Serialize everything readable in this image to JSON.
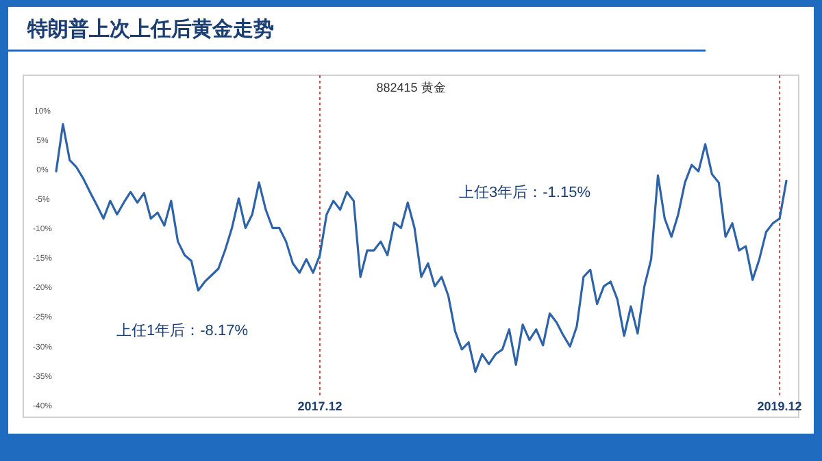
{
  "chart_data": {
    "type": "line",
    "title": "特朗普上次上任后黄金走势",
    "subtitle": "882415 黄金",
    "ylim": [
      -42,
      16
    ],
    "yticks": [
      {
        "value": 10,
        "label": "10%"
      },
      {
        "value": 5,
        "label": "5%"
      },
      {
        "value": 0,
        "label": "0%"
      },
      {
        "value": -5,
        "label": "-5%"
      },
      {
        "value": -10,
        "label": "-10%"
      },
      {
        "value": -15,
        "label": "-15%"
      },
      {
        "value": -20,
        "label": "-20%"
      },
      {
        "value": -25,
        "label": "-25%"
      },
      {
        "value": -30,
        "label": "-30%"
      },
      {
        "value": -35,
        "label": "-35%"
      },
      {
        "value": -40,
        "label": "-40%"
      }
    ],
    "grid": false,
    "categories": [
      null,
      null,
      null,
      null,
      null,
      null,
      null,
      null,
      null,
      null,
      null,
      null,
      null,
      null,
      null,
      null,
      null,
      null,
      null,
      null,
      null,
      null,
      null,
      null,
      null,
      null,
      null,
      null,
      null,
      null,
      null,
      null,
      null,
      null,
      null,
      null,
      null,
      null,
      null,
      "2017.12",
      null,
      null,
      null,
      null,
      null,
      null,
      null,
      null,
      null,
      null,
      null,
      null,
      null,
      null,
      null,
      null,
      null,
      null,
      null,
      null,
      null,
      null,
      null,
      null,
      null,
      null,
      null,
      null,
      null,
      null,
      null,
      null,
      null,
      null,
      null,
      null,
      null,
      null,
      null,
      null,
      null,
      null,
      null,
      null,
      null,
      null,
      null,
      null,
      null,
      null,
      null,
      null,
      null,
      null,
      null,
      null,
      null,
      null,
      null,
      null,
      null,
      null,
      null,
      null,
      null,
      null,
      null,
      "2019.12",
      null
    ],
    "ref_lines": [
      {
        "axis": "x",
        "value": "2017.12",
        "color": "#c0504d",
        "line_style": "dotted"
      },
      {
        "axis": "x",
        "value": "2019.12",
        "color": "#c0504d",
        "line_style": "dotted"
      }
    ],
    "annotations": [
      "上任1年后：-8.17%",
      "上任3年后：-1.15%"
    ],
    "series": [
      {
        "color": "#2e63a8",
        "values": [
          -0.3,
          7.7,
          1.6,
          0.4,
          -1.5,
          -3.8,
          -6,
          -8.3,
          -5.3,
          -7.6,
          -5.6,
          -3.8,
          -5.6,
          -4,
          -8.3,
          -7.3,
          -9.5,
          -5.3,
          -12.2,
          -14.5,
          -15.5,
          -20.5,
          -19,
          -17.9,
          -16.8,
          -13.6,
          -9.9,
          -4.9,
          -9.9,
          -7.6,
          -2.2,
          -6.8,
          -9.9,
          -9.9,
          -12.2,
          -15.9,
          -17.5,
          -15.2,
          -17.5,
          -14.5,
          -7.6,
          -5.3,
          -6.8,
          -3.8,
          -5.3,
          -18.2,
          -13.7,
          -13.7,
          -12.2,
          -14.5,
          -9,
          -9.9,
          -5.6,
          -9.9,
          -18.2,
          -15.9,
          -19.8,
          -18.2,
          -21.4,
          -27.4,
          -30.5,
          -29.3,
          -34.3,
          -31.3,
          -33,
          -31.3,
          -30.5,
          -27.1,
          -33.1,
          -26.3,
          -28.9,
          -27.1,
          -29.8,
          -24.4,
          -25.9,
          -28.1,
          -30,
          -26.6,
          -18.2,
          -17,
          -22.8,
          -19.8,
          -19,
          -22,
          -28.2,
          -23.2,
          -27.8,
          -19.8,
          -15.2,
          -1,
          -8.3,
          -11.4,
          -7.6,
          -2.2,
          0.8,
          -0.3,
          4.3,
          -0.8,
          -2.2,
          -11.4,
          -9.1,
          -13.7,
          -13,
          -18.7,
          -15.2,
          -10.6,
          -9.1,
          -8.3,
          -1.9
        ]
      }
    ]
  }
}
